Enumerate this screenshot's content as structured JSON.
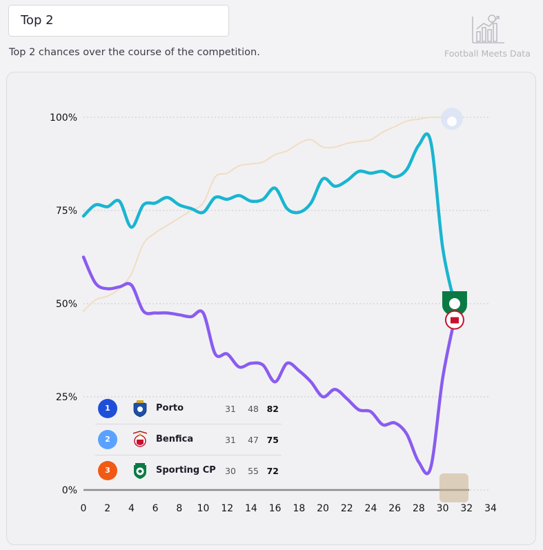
{
  "header": {
    "title": "Top 2",
    "subtitle": "Top 2 chances over the course of the competition.",
    "brand": "Football Meets Data"
  },
  "chart_data": {
    "type": "line",
    "xlim": [
      0,
      34
    ],
    "ylim": [
      0,
      100
    ],
    "x_ticks": [
      0,
      2,
      4,
      6,
      8,
      10,
      12,
      14,
      16,
      18,
      20,
      22,
      24,
      26,
      28,
      30,
      32,
      34
    ],
    "y_ticks": [
      0,
      25,
      50,
      75,
      100
    ],
    "y_tick_labels": [
      "0%",
      "25%",
      "50%",
      "75%",
      "100%"
    ],
    "grid": "horizontal dotted",
    "series": [
      {
        "name": "Porto",
        "color": "#f2dcc3",
        "x": [
          0,
          1,
          2,
          3,
          4,
          5,
          6,
          7,
          8,
          9,
          10,
          11,
          12,
          13,
          14,
          15,
          16,
          17,
          18,
          19,
          20,
          21,
          22,
          23,
          24,
          25,
          26,
          27,
          28,
          29,
          30,
          31
        ],
        "values": [
          48,
          51,
          52,
          54,
          58,
          66,
          69,
          71,
          73,
          75,
          77,
          84,
          85,
          87,
          87.5,
          88,
          90,
          91,
          93,
          94,
          92,
          92,
          93,
          93.5,
          94,
          96,
          97.5,
          99,
          99.5,
          100,
          100,
          100
        ]
      },
      {
        "name": "Sporting CP",
        "color": "#19b5d1",
        "x": [
          0,
          1,
          2,
          3,
          4,
          5,
          6,
          7,
          8,
          9,
          10,
          11,
          12,
          13,
          14,
          15,
          16,
          17,
          18,
          19,
          20,
          21,
          22,
          23,
          24,
          25,
          26,
          27,
          28,
          29,
          30,
          31
        ],
        "values": [
          73.5,
          76.5,
          76,
          77.5,
          70.5,
          76.5,
          77,
          78.5,
          76.5,
          75.5,
          74.5,
          78.5,
          78,
          79,
          77.5,
          78,
          81,
          75.5,
          74.5,
          77,
          83.5,
          81.5,
          83,
          85.5,
          85,
          85.5,
          84,
          86,
          92.5,
          93.5,
          65,
          50
        ]
      },
      {
        "name": "Benfica",
        "color": "#8a5cf0",
        "x": [
          0,
          1,
          2,
          3,
          4,
          5,
          6,
          7,
          8,
          9,
          10,
          11,
          12,
          13,
          14,
          15,
          16,
          17,
          18,
          19,
          20,
          21,
          22,
          23,
          24,
          25,
          26,
          27,
          28,
          29,
          30,
          31
        ],
        "values": [
          62.5,
          55.5,
          54,
          54.5,
          55,
          48,
          47.5,
          47.5,
          47,
          46.5,
          47.5,
          36.5,
          36.5,
          33,
          34,
          33.5,
          29,
          34,
          32,
          29,
          25,
          27,
          24.5,
          21.5,
          21,
          17.5,
          18,
          15,
          7.5,
          6,
          30,
          46
        ]
      }
    ],
    "legend": [
      {
        "rank": "1",
        "team": "Porto",
        "played": "31",
        "gd": "48",
        "pts": "82",
        "color": "#1f4fd8"
      },
      {
        "rank": "2",
        "team": "Benfica",
        "played": "31",
        "gd": "47",
        "pts": "75",
        "color": "#5aa2ff"
      },
      {
        "rank": "3",
        "team": "Sporting CP",
        "played": "30",
        "gd": "55",
        "pts": "72",
        "color": "#f05a14"
      }
    ]
  }
}
